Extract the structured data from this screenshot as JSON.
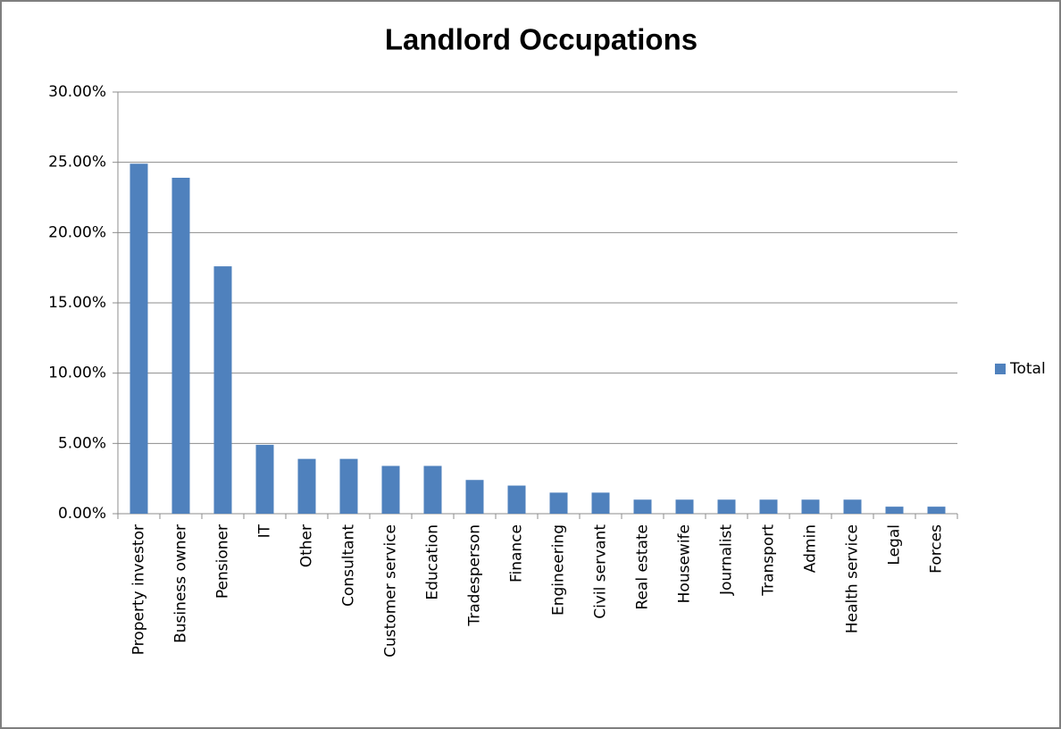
{
  "chart_data": {
    "type": "bar",
    "title": "Landlord Occupations",
    "categories": [
      "Property investor",
      "Business owner",
      "Pensioner",
      "IT",
      "Other",
      "Consultant",
      "Customer service",
      "Education",
      "Tradesperson",
      "Finance",
      "Engineering",
      "Civil servant",
      "Real estate",
      "Housewife",
      "Journalist",
      "Transport",
      "Admin",
      "Health service",
      "Legal",
      "Forces"
    ],
    "series": [
      {
        "name": "Total",
        "color": "#4f81bd",
        "values": [
          24.9,
          23.9,
          17.6,
          4.9,
          3.9,
          3.9,
          3.4,
          3.4,
          2.4,
          2.0,
          1.5,
          1.5,
          1.0,
          1.0,
          1.0,
          1.0,
          1.0,
          1.0,
          0.5,
          0.5
        ]
      }
    ],
    "ylim": [
      0,
      30
    ],
    "yticks": [
      {
        "value": 0,
        "label": "0.00%"
      },
      {
        "value": 5,
        "label": "5.00%"
      },
      {
        "value": 10,
        "label": "10.00%"
      },
      {
        "value": 15,
        "label": "15.00%"
      },
      {
        "value": 20,
        "label": "20.00%"
      },
      {
        "value": 25,
        "label": "25.00%"
      },
      {
        "value": 30,
        "label": "30.00%"
      }
    ],
    "grid": true,
    "legend": "right"
  }
}
